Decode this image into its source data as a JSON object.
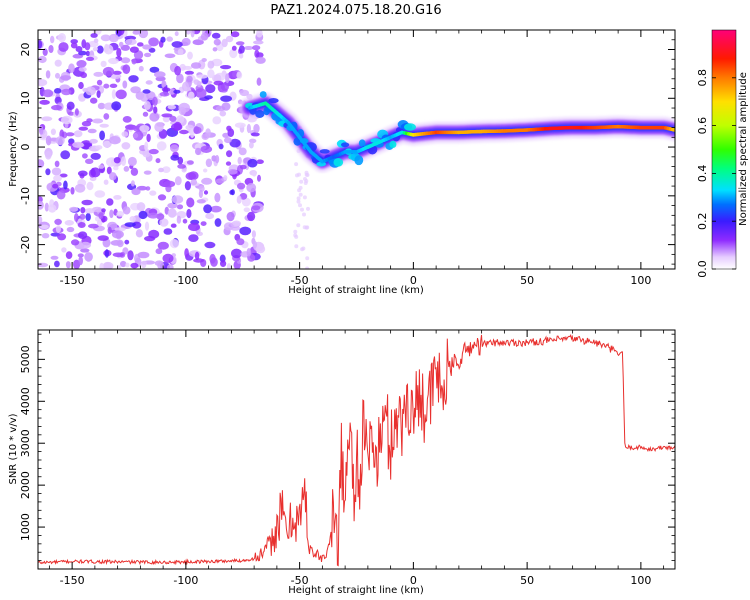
{
  "title": "PAZ1.2024.075.18.20.G16",
  "chart_data": [
    {
      "type": "heatmap",
      "xlabel": "Height of straight line (km)",
      "ylabel": "Frequency (Hz)",
      "xlim": [
        -165,
        115
      ],
      "ylim": [
        -25,
        24
      ],
      "xticks": [
        -150,
        -100,
        -50,
        0,
        50,
        100
      ],
      "yticks": [
        -20,
        -10,
        0,
        10,
        20
      ],
      "colorbar": {
        "label": "Normalized spectral amplitude",
        "range": [
          0,
          1
        ],
        "ticks": [
          "0.0",
          "0.2",
          "0.4",
          "0.6",
          "0.8"
        ],
        "colormap": "gist_ncar-like (white-violet-blue-cyan-green-yellow-orange-red-pink)"
      },
      "ridge": {
        "description": "Dominant frequency ridge; high amplitude trace",
        "x": [
          -72,
          -65,
          -60,
          -55,
          -50,
          -45,
          -40,
          -35,
          -30,
          -25,
          -20,
          -15,
          -10,
          -5,
          0,
          10,
          20,
          30,
          40,
          50,
          60,
          70,
          80,
          90,
          100,
          110,
          115
        ],
        "y": [
          8,
          9,
          7,
          5,
          2,
          -1,
          -3,
          -2,
          -1,
          -1,
          0,
          1,
          2,
          3,
          2.5,
          3,
          3,
          3.2,
          3.3,
          3.5,
          3.8,
          4,
          4,
          4.2,
          4,
          4,
          3.5
        ],
        "amplitude": [
          0.3,
          0.4,
          0.35,
          0.3,
          0.3,
          0.3,
          0.3,
          0.25,
          0.3,
          0.3,
          0.35,
          0.35,
          0.3,
          0.35,
          0.7,
          0.85,
          0.75,
          0.75,
          0.8,
          0.8,
          0.9,
          0.9,
          0.85,
          0.8,
          0.85,
          0.85,
          0.7
        ]
      },
      "noise_region": {
        "xmin": -165,
        "xmax": -75,
        "ymin": -25,
        "ymax": 24,
        "amplitude": 0.12
      }
    },
    {
      "type": "line",
      "xlabel": "Height of straight line (km)",
      "ylabel": "SNR (10 * v/v)",
      "xlim": [
        -165,
        115
      ],
      "ylim": [
        0,
        5700
      ],
      "xticks": [
        -150,
        -100,
        -50,
        0,
        50,
        100
      ],
      "yticks": [
        1000,
        2000,
        3000,
        4000,
        5000
      ],
      "series": [
        {
          "color": "#e8302e",
          "x": [
            -165,
            -150,
            -130,
            -110,
            -90,
            -75,
            -70,
            -65,
            -62,
            -58,
            -55,
            -52,
            -50,
            -48,
            -46,
            -44,
            -42,
            -40,
            -38,
            -35,
            -33,
            -32,
            -30,
            -28,
            -26,
            -25,
            -24,
            -22,
            -20,
            -18,
            -16,
            -15,
            -12,
            -10,
            -8,
            -5,
            -3,
            0,
            3,
            5,
            8,
            10,
            12,
            15,
            18,
            20,
            25,
            30,
            35,
            40,
            50,
            60,
            70,
            80,
            85,
            90,
            92,
            93,
            95,
            100,
            105,
            110,
            115
          ],
          "y": [
            150,
            180,
            170,
            160,
            180,
            200,
            250,
            400,
            700,
            1300,
            900,
            1400,
            1100,
            1800,
            700,
            400,
            300,
            250,
            350,
            1200,
            600,
            2800,
            1600,
            3700,
            1500,
            3000,
            2000,
            3400,
            2300,
            3500,
            2200,
            3100,
            3600,
            2800,
            3800,
            3300,
            4200,
            3600,
            4400,
            3800,
            4100,
            4800,
            4200,
            4700,
            4900,
            5000,
            5300,
            5350,
            5400,
            5400,
            5400,
            5450,
            5500,
            5400,
            5300,
            5150,
            5100,
            2900,
            2900,
            2900,
            2850,
            2900,
            2900
          ]
        }
      ]
    }
  ]
}
